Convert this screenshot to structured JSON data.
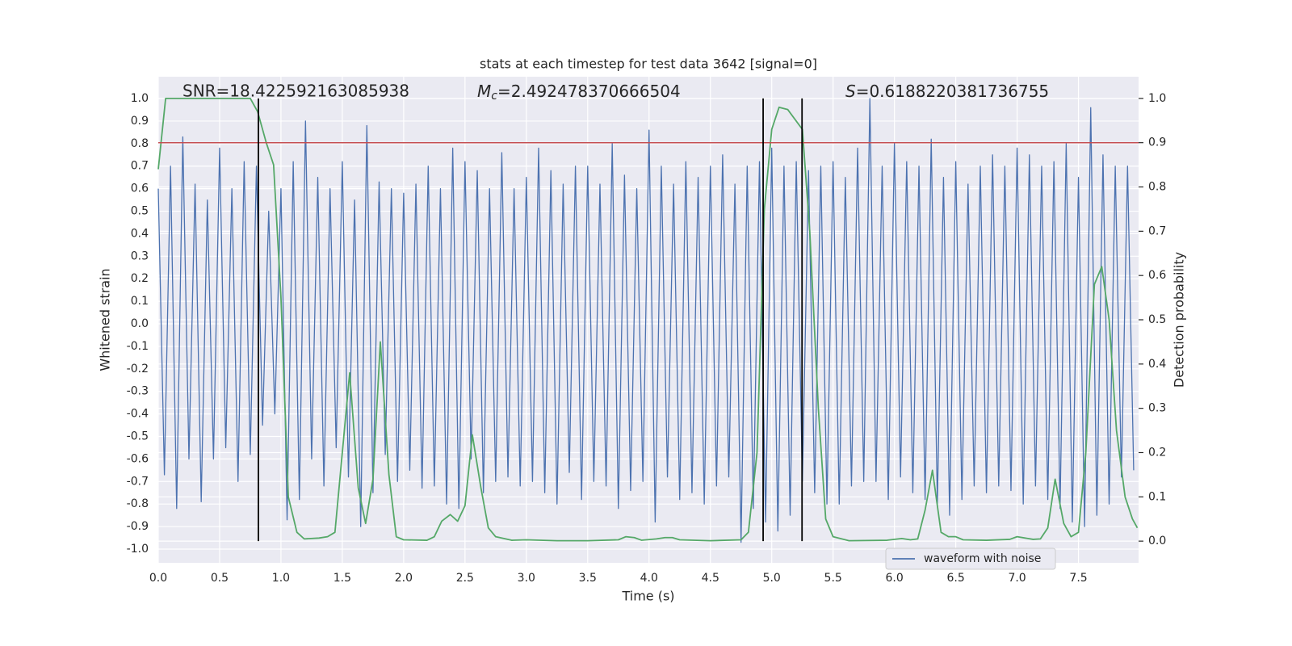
{
  "chart_data": {
    "type": "line",
    "title": "stats at each timestep for test data 3642 [signal=0]",
    "xlabel": "Time (s)",
    "ylabel": "Whitened strain",
    "y2label": "Detection probability",
    "annotations": [
      {
        "text": "SNR=18.422592163085938"
      },
      {
        "symbol": "M",
        "subscript": "c",
        "text": "=2.492478370666504"
      },
      {
        "symbol": "S",
        "text": "=0.6188220381736755"
      }
    ],
    "xlim": [
      0,
      7.99
    ],
    "ylim": [
      -1.061,
      1.097
    ],
    "y2lim": [
      -0.049,
      1.049
    ],
    "xticks": [
      {
        "value": 0,
        "label": "0.0"
      },
      0.5,
      {
        "value": 1,
        "label": "1.0"
      },
      1.5,
      {
        "value": 2,
        "label": "2.0"
      },
      2.5,
      {
        "value": 3,
        "label": "3.0"
      },
      3.5,
      {
        "value": 4,
        "label": "4.0"
      },
      4.5,
      {
        "value": 5,
        "label": "5.0"
      },
      5.5,
      {
        "value": 6,
        "label": "6.0"
      },
      6.5,
      {
        "value": 7,
        "label": "7.0"
      },
      7.5
    ],
    "yticks": [
      {
        "value": -1,
        "label": "-1.0"
      },
      -0.9,
      -0.8,
      -0.7,
      -0.6,
      -0.5,
      -0.4,
      -0.3,
      -0.2,
      -0.1,
      {
        "value": 0,
        "label": "0.0"
      },
      0.1,
      0.2,
      0.3,
      0.4,
      0.5,
      0.6,
      0.7,
      0.8,
      0.9,
      {
        "value": 1,
        "label": "1.0"
      }
    ],
    "y2ticks": [
      {
        "value": 0,
        "label": "0.0"
      },
      0.1,
      0.2,
      0.3,
      0.4,
      0.5,
      0.6,
      0.7,
      0.8,
      0.9,
      {
        "value": 1,
        "label": "1.0"
      }
    ],
    "grid": true,
    "legend": "lower right",
    "series": [
      {
        "name": "waveform with noise",
        "color": "#4c72b0",
        "x": [
          0,
          0.05,
          0.1,
          0.15,
          0.2,
          0.25,
          0.3,
          0.35,
          0.4,
          0.45,
          0.5,
          0.55,
          0.6,
          0.65,
          0.7,
          0.75,
          0.8,
          0.85,
          0.9,
          0.95,
          1,
          1.05,
          1.1,
          1.15,
          1.2,
          1.25,
          1.3,
          1.35,
          1.4,
          1.45,
          1.5,
          1.55,
          1.6,
          1.65,
          1.7,
          1.75,
          1.8,
          1.85,
          1.9,
          1.95,
          2,
          2.05,
          2.1,
          2.15,
          2.2,
          2.25,
          2.3,
          2.35,
          2.4,
          2.45,
          2.5,
          2.55,
          2.6,
          2.65,
          2.7,
          2.75,
          2.8,
          2.85,
          2.9,
          2.95,
          3,
          3.05,
          3.1,
          3.15,
          3.2,
          3.25,
          3.3,
          3.35,
          3.4,
          3.45,
          3.5,
          3.55,
          3.6,
          3.65,
          3.7,
          3.75,
          3.8,
          3.85,
          3.9,
          3.95,
          4,
          4.05,
          4.1,
          4.15,
          4.2,
          4.25,
          4.3,
          4.35,
          4.4,
          4.45,
          4.5,
          4.55,
          4.6,
          4.65,
          4.7,
          4.75,
          4.8,
          4.85,
          4.9,
          4.95,
          5,
          5.05,
          5.1,
          5.15,
          5.2,
          5.25,
          5.3,
          5.35,
          5.4,
          5.45,
          5.5,
          5.55,
          5.6,
          5.65,
          5.7,
          5.75,
          5.8,
          5.85,
          5.9,
          5.95,
          6,
          6.05,
          6.1,
          6.15,
          6.2,
          6.25,
          6.3,
          6.35,
          6.4,
          6.45,
          6.5,
          6.55,
          6.6,
          6.65,
          6.7,
          6.75,
          6.8,
          6.85,
          6.9,
          6.95,
          7,
          7.05,
          7.1,
          7.15,
          7.2,
          7.25,
          7.3,
          7.35,
          7.4,
          7.45,
          7.5,
          7.55,
          7.6,
          7.65,
          7.7,
          7.75,
          7.8,
          7.85,
          7.9,
          7.95
        ],
        "values": [
          0.6,
          -0.67,
          0.7,
          -0.82,
          0.83,
          -0.6,
          0.62,
          -0.79,
          0.55,
          -0.6,
          0.78,
          -0.55,
          0.6,
          -0.7,
          0.72,
          -0.58,
          0.7,
          -0.45,
          0.5,
          -0.4,
          0.6,
          -0.87,
          0.72,
          -0.78,
          0.9,
          -0.6,
          0.65,
          -0.72,
          0.6,
          -0.55,
          0.72,
          -0.68,
          0.55,
          -0.9,
          0.88,
          -0.75,
          0.63,
          -0.58,
          0.6,
          -0.7,
          0.58,
          -0.65,
          0.62,
          -0.73,
          0.7,
          -0.72,
          0.6,
          -0.8,
          0.78,
          -0.82,
          0.72,
          -0.6,
          0.68,
          -0.75,
          0.6,
          -0.7,
          0.76,
          -0.68,
          0.6,
          -0.72,
          0.65,
          -0.7,
          0.78,
          -0.75,
          0.68,
          -0.8,
          0.62,
          -0.66,
          0.7,
          -0.78,
          0.7,
          -0.7,
          0.62,
          -0.72,
          0.8,
          -0.82,
          0.66,
          -0.74,
          0.6,
          -0.7,
          0.86,
          -0.88,
          0.7,
          -0.68,
          0.62,
          -0.78,
          0.72,
          -0.75,
          0.65,
          -0.8,
          0.7,
          -0.72,
          0.75,
          -0.68,
          0.62,
          -0.97,
          0.7,
          -0.82,
          0.72,
          -0.88,
          0.78,
          -0.92,
          0.7,
          -0.85,
          0.72,
          -0.7,
          0.68,
          -0.75,
          0.7,
          -0.8,
          0.72,
          -0.8,
          0.65,
          -0.72,
          0.78,
          -0.7,
          1.0,
          -0.7,
          0.7,
          -0.78,
          0.8,
          -0.68,
          0.72,
          -0.75,
          0.7,
          -0.78,
          0.82,
          -0.8,
          0.65,
          -0.85,
          0.72,
          -0.78,
          0.62,
          -0.72,
          0.7,
          -0.75,
          0.75,
          -0.72,
          0.7,
          -0.74,
          0.78,
          -0.8,
          0.75,
          -0.72,
          0.7,
          -0.78,
          0.72,
          -0.82,
          0.8,
          -0.88,
          0.65,
          -0.9,
          0.96,
          -0.85,
          0.75,
          -0.8,
          0.7,
          -0.68,
          0.7,
          -0.65
        ]
      },
      {
        "color": "#55a868",
        "axis": "y2",
        "x": [
          0,
          0.06,
          0.3,
          0.5,
          0.75,
          0.81,
          0.88,
          0.94,
          1.0,
          1.06,
          1.13,
          1.19,
          1.31,
          1.38,
          1.44,
          1.5,
          1.56,
          1.63,
          1.69,
          1.75,
          1.81,
          1.88,
          1.94,
          2.0,
          2.19,
          2.25,
          2.31,
          2.38,
          2.44,
          2.5,
          2.56,
          2.63,
          2.69,
          2.75,
          2.88,
          3.0,
          3.25,
          3.5,
          3.75,
          3.81,
          3.88,
          3.94,
          4.06,
          4.13,
          4.19,
          4.25,
          4.5,
          4.75,
          4.81,
          4.88,
          4.94,
          5.0,
          5.06,
          5.13,
          5.25,
          5.31,
          5.38,
          5.44,
          5.5,
          5.63,
          5.94,
          6.06,
          6.13,
          6.19,
          6.25,
          6.31,
          6.38,
          6.44,
          6.5,
          6.56,
          6.75,
          6.94,
          7.0,
          7.13,
          7.19,
          7.25,
          7.31,
          7.38,
          7.44,
          7.5,
          7.56,
          7.63,
          7.69,
          7.75,
          7.81,
          7.88,
          7.94,
          7.98
        ],
        "values": [
          0.84,
          1.0,
          1.0,
          1.0,
          1.0,
          0.97,
          0.9,
          0.85,
          0.55,
          0.1,
          0.02,
          0.005,
          0.007,
          0.01,
          0.02,
          0.2,
          0.38,
          0.12,
          0.04,
          0.14,
          0.45,
          0.15,
          0.01,
          0.003,
          0.002,
          0.01,
          0.045,
          0.06,
          0.045,
          0.08,
          0.24,
          0.12,
          0.03,
          0.01,
          0.002,
          0.003,
          0.001,
          0.001,
          0.003,
          0.01,
          0.008,
          0.002,
          0.005,
          0.008,
          0.008,
          0.003,
          0.001,
          0.003,
          0.02,
          0.2,
          0.75,
          0.93,
          0.98,
          0.975,
          0.93,
          0.7,
          0.3,
          0.05,
          0.01,
          0.001,
          0.002,
          0.006,
          0.003,
          0.005,
          0.07,
          0.16,
          0.02,
          0.01,
          0.01,
          0.003,
          0.002,
          0.004,
          0.01,
          0.004,
          0.005,
          0.03,
          0.14,
          0.04,
          0.01,
          0.02,
          0.2,
          0.58,
          0.62,
          0.5,
          0.25,
          0.1,
          0.05,
          0.03
        ]
      }
    ],
    "threshold": {
      "value": 0.9,
      "axis": "y2",
      "color": "#c44e52"
    },
    "vlines": {
      "x": [
        0.816,
        4.93,
        5.247
      ],
      "ymin": 0,
      "ymax": 1,
      "axis": "y2",
      "color": "#000000"
    }
  }
}
